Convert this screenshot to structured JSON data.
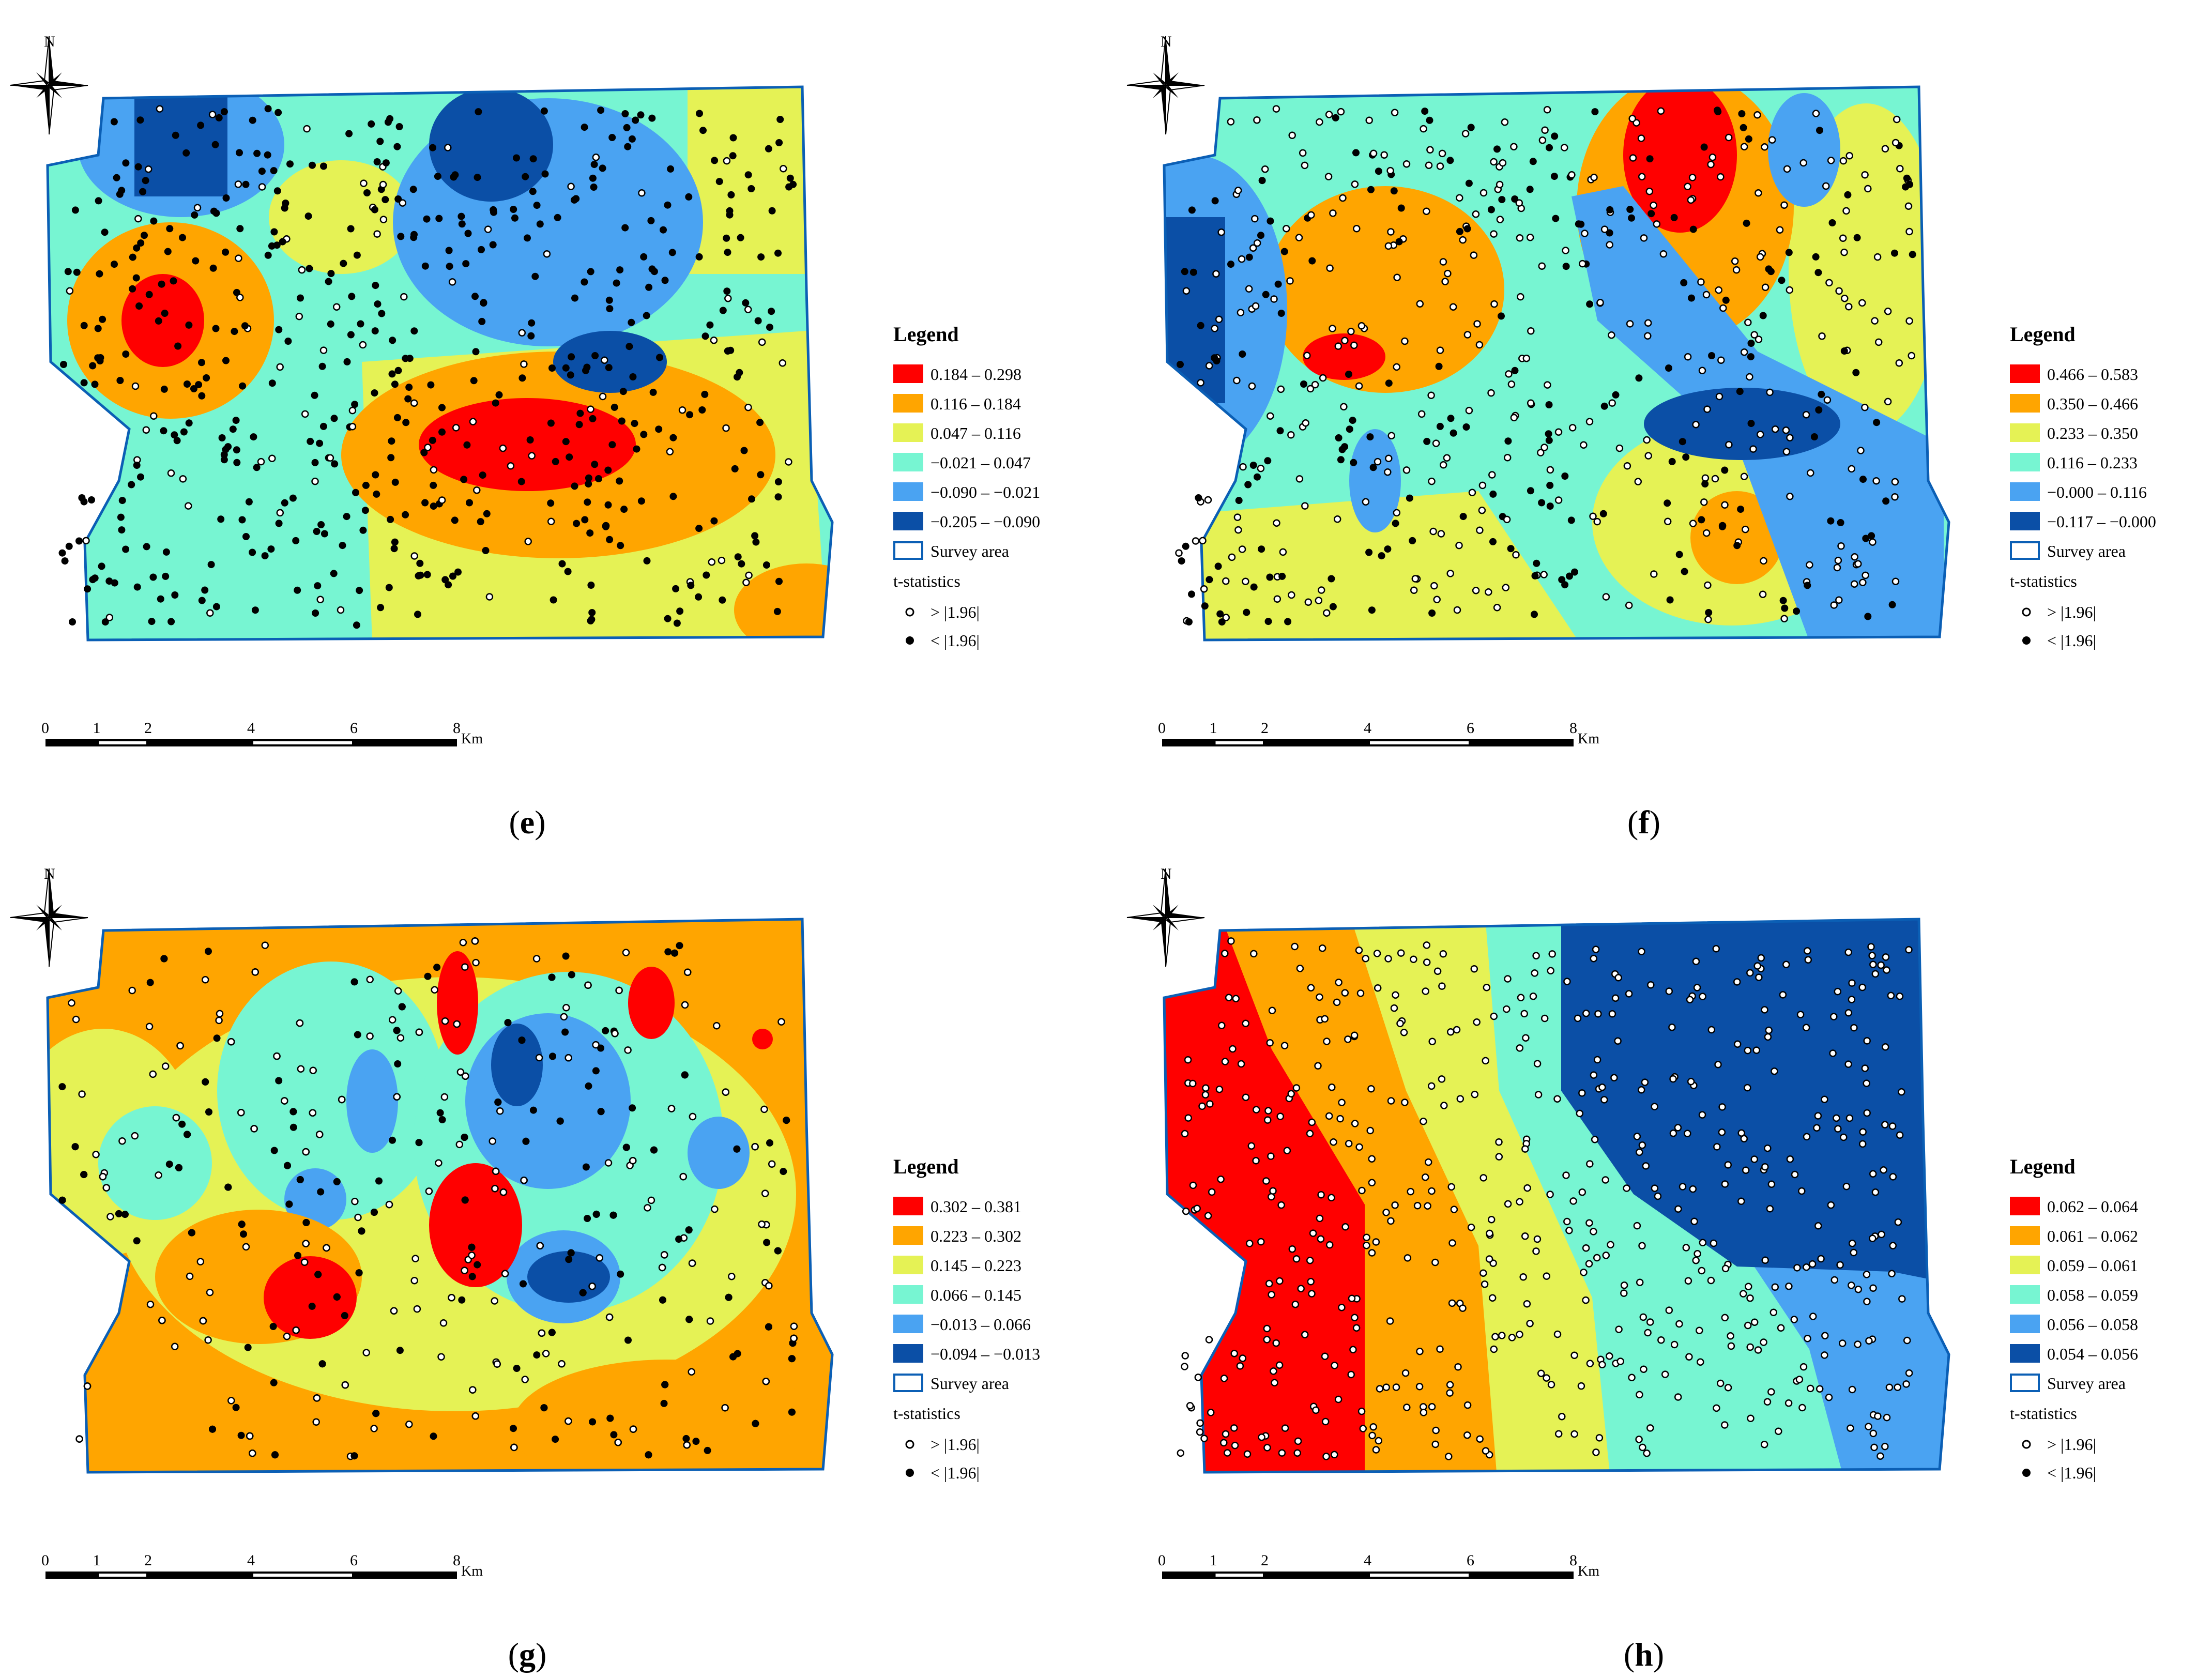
{
  "colors": {
    "red": "#ff0000",
    "orange": "#ffa500",
    "yellow": "#e5f255",
    "aqua": "#77f5d2",
    "blue": "#4aa3f2",
    "navy": "#0b4fa6",
    "outline": "#0b5fb5"
  },
  "panels": [
    {
      "caption_open": "(",
      "caption_letter": "e",
      "caption_close": ")",
      "north": "N",
      "legend_title": "Legend",
      "classes": [
        "0.184 – 0.298",
        "0.116 – 0.184",
        "0.047 – 0.116",
        "−0.021 – 0.047",
        "−0.090 – −0.021",
        "−0.205 – −0.090"
      ],
      "survey_area": "Survey area",
      "tstat_title": "t-statistics",
      "tstat_sig": "> |1.96|",
      "tstat_nonsig": "< |1.96|",
      "scale_ticks": [
        "0",
        "1",
        "2",
        "4",
        "6",
        "8"
      ],
      "scale_unit": "Km",
      "style": "mixed"
    },
    {
      "caption_open": "(",
      "caption_letter": "f",
      "caption_close": ")",
      "north": "N",
      "legend_title": "Legend",
      "classes": [
        "0.466 – 0.583",
        "0.350 – 0.466",
        "0.233 – 0.350",
        "0.116 – 0.233",
        "−0.000 – 0.116",
        "−0.117 – −0.000"
      ],
      "survey_area": "Survey area",
      "tstat_title": "t-statistics",
      "tstat_sig": "> |1.96|",
      "tstat_nonsig": "< |1.96|",
      "scale_ticks": [
        "0",
        "1",
        "2",
        "4",
        "6",
        "8"
      ],
      "scale_unit": "Km",
      "style": "hotspots"
    },
    {
      "caption_open": "(",
      "caption_letter": "g",
      "caption_close": ")",
      "north": "N",
      "legend_title": "Legend",
      "classes": [
        "0.302 – 0.381",
        "0.223 – 0.302",
        "0.145 – 0.223",
        "0.066 – 0.145",
        "−0.013 – 0.066",
        "−0.094 – −0.013"
      ],
      "survey_area": "Survey area",
      "tstat_title": "t-statistics",
      "tstat_sig": "> |1.96|",
      "tstat_nonsig": "< |1.96|",
      "scale_ticks": [
        "0",
        "1",
        "2",
        "4",
        "6",
        "8"
      ],
      "scale_unit": "Km",
      "style": "patchy"
    },
    {
      "caption_open": "(",
      "caption_letter": "h",
      "caption_close": ")",
      "north": "N",
      "legend_title": "Legend",
      "classes": [
        "0.062 – 0.064",
        "0.061 – 0.062",
        "0.059 – 0.061",
        "0.058 – 0.059",
        "0.056 – 0.058",
        "0.054 – 0.056"
      ],
      "survey_area": "Survey area",
      "tstat_title": "t-statistics",
      "tstat_sig": "> |1.96|",
      "tstat_nonsig": "< |1.96|",
      "scale_ticks": [
        "0",
        "1",
        "2",
        "4",
        "6",
        "8"
      ],
      "scale_unit": "Km",
      "style": "gradient"
    }
  ]
}
